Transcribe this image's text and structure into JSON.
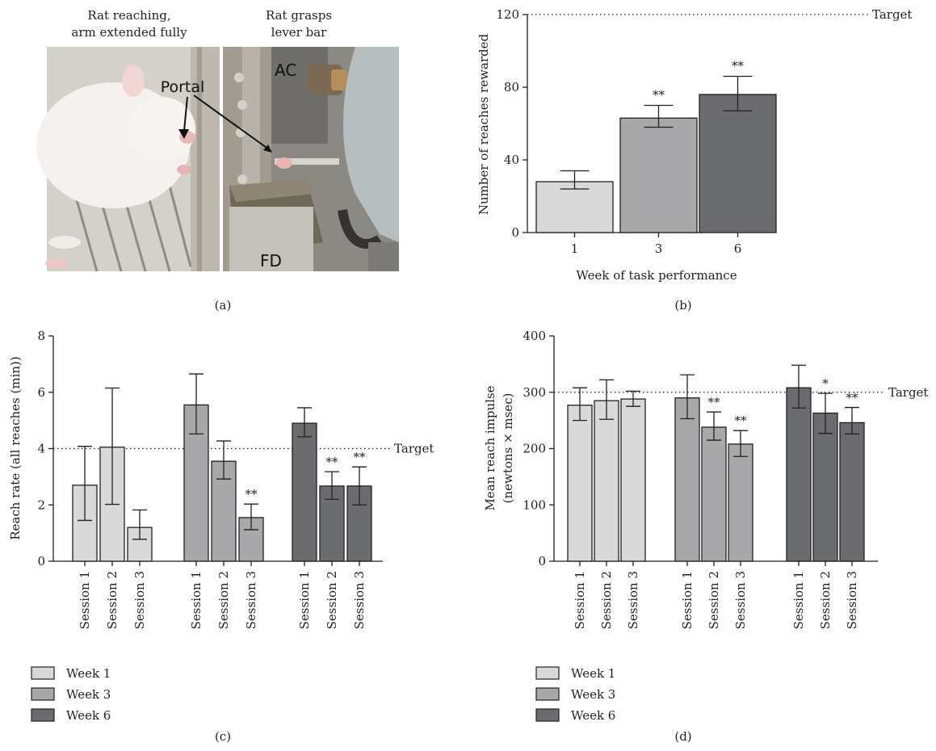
{
  "colors": {
    "week1": "#d9d9da",
    "week3": "#a8a8aa",
    "week6": "#6b6c6f",
    "stroke": "#231f20"
  },
  "photo": {
    "caption_left_1": "Rat reaching,",
    "caption_left_2": "arm extended fully",
    "caption_right_1": "Rat grasps",
    "caption_right_2": "lever bar",
    "label_portal": "Portal",
    "label_ac": "AC",
    "label_fd": "FD"
  },
  "panel_labels": {
    "a": "(a)",
    "b": "(b)",
    "c": "(c)",
    "d": "(d)"
  },
  "chart_data": [
    {
      "id": "b",
      "type": "bar",
      "categories": [
        "1",
        "3",
        "6"
      ],
      "values": [
        28,
        63,
        76
      ],
      "error_low": [
        24,
        58,
        67
      ],
      "error_high": [
        34,
        70,
        86
      ],
      "significance": [
        "",
        "**",
        "**"
      ],
      "ylabel": "Number of reaches rewarded",
      "xlabel": "Week of task performance",
      "ylim": [
        0,
        120
      ],
      "yticks": [
        0,
        40,
        80,
        120
      ],
      "target": 120,
      "target_label": "Target"
    },
    {
      "id": "c",
      "type": "bar",
      "categories": [
        "Session 1",
        "Session 2",
        "Session 3"
      ],
      "series": [
        {
          "name": "Week 1",
          "values": [
            2.7,
            4.05,
            1.2
          ],
          "error_low": [
            1.45,
            2.02,
            0.78
          ],
          "error_high": [
            4.08,
            6.15,
            1.82
          ],
          "significance": [
            "",
            "",
            ""
          ]
        },
        {
          "name": "Week 3",
          "values": [
            5.55,
            3.55,
            1.55
          ],
          "error_low": [
            4.52,
            2.92,
            1.12
          ],
          "error_high": [
            6.65,
            4.27,
            2.03
          ],
          "significance": [
            "",
            "",
            "**"
          ]
        },
        {
          "name": "Week 6",
          "values": [
            4.9,
            2.67,
            2.67
          ],
          "error_low": [
            4.42,
            2.2,
            2.0
          ],
          "error_high": [
            5.45,
            3.18,
            3.35
          ],
          "significance": [
            "",
            "**",
            "**"
          ]
        }
      ],
      "ylabel": "Reach rate (all reaches (min))",
      "ylim": [
        0,
        8
      ],
      "yticks": [
        0,
        2,
        4,
        6,
        8
      ],
      "target": 4,
      "target_label": "Target"
    },
    {
      "id": "d",
      "type": "bar",
      "categories": [
        "Session 1",
        "Session 2",
        "Session 3"
      ],
      "series": [
        {
          "name": "Week 1",
          "values": [
            277,
            285,
            288
          ],
          "error_low": [
            250,
            252,
            275
          ],
          "error_high": [
            308,
            322,
            302
          ],
          "significance": [
            "",
            "",
            ""
          ]
        },
        {
          "name": "Week 3",
          "values": [
            290,
            238,
            208
          ],
          "error_low": [
            253,
            215,
            186
          ],
          "error_high": [
            331,
            265,
            232
          ],
          "significance": [
            "",
            "**",
            "**"
          ]
        },
        {
          "name": "Week 6",
          "values": [
            308,
            263,
            246
          ],
          "error_low": [
            272,
            227,
            226
          ],
          "error_high": [
            348,
            298,
            273
          ],
          "significance": [
            "",
            "*",
            "**"
          ]
        }
      ],
      "ylabel_1": "Mean reach impulse",
      "ylabel_2": "(newtons × msec)",
      "ylim": [
        0,
        400
      ],
      "yticks": [
        0,
        100,
        200,
        300,
        400
      ],
      "target": 300,
      "target_label": "Target"
    }
  ]
}
